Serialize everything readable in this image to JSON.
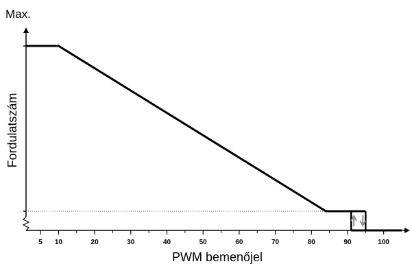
{
  "chart_data": {
    "type": "line",
    "title": "",
    "xlabel": "PWM bemenőjel",
    "ylabel": "Fordulatszám",
    "y_top_label": "Max.",
    "xlim": [
      1,
      105
    ],
    "ylim": [
      0,
      100
    ],
    "grid": false,
    "x_ticks": [
      5,
      10,
      20,
      30,
      40,
      50,
      60,
      70,
      80,
      90,
      100
    ],
    "x_minor_ticks": [
      15,
      25,
      35,
      45,
      55,
      65,
      75,
      85,
      95
    ],
    "min_speed_level": 4,
    "series": [
      {
        "x": [
          1,
          10,
          84,
          91,
          95
        ],
        "y": [
          100,
          100,
          4,
          4,
          4
        ]
      }
    ],
    "hysteresis": {
      "on_x": 91,
      "off_x": 95,
      "stopped_x_end": 105,
      "stopped_y": -4,
      "up_arrow_x": 91,
      "down_arrow_x": 95
    },
    "colors": {
      "line": "#000000",
      "arrow": "#8c8c8c",
      "dotted": "#555555"
    }
  }
}
